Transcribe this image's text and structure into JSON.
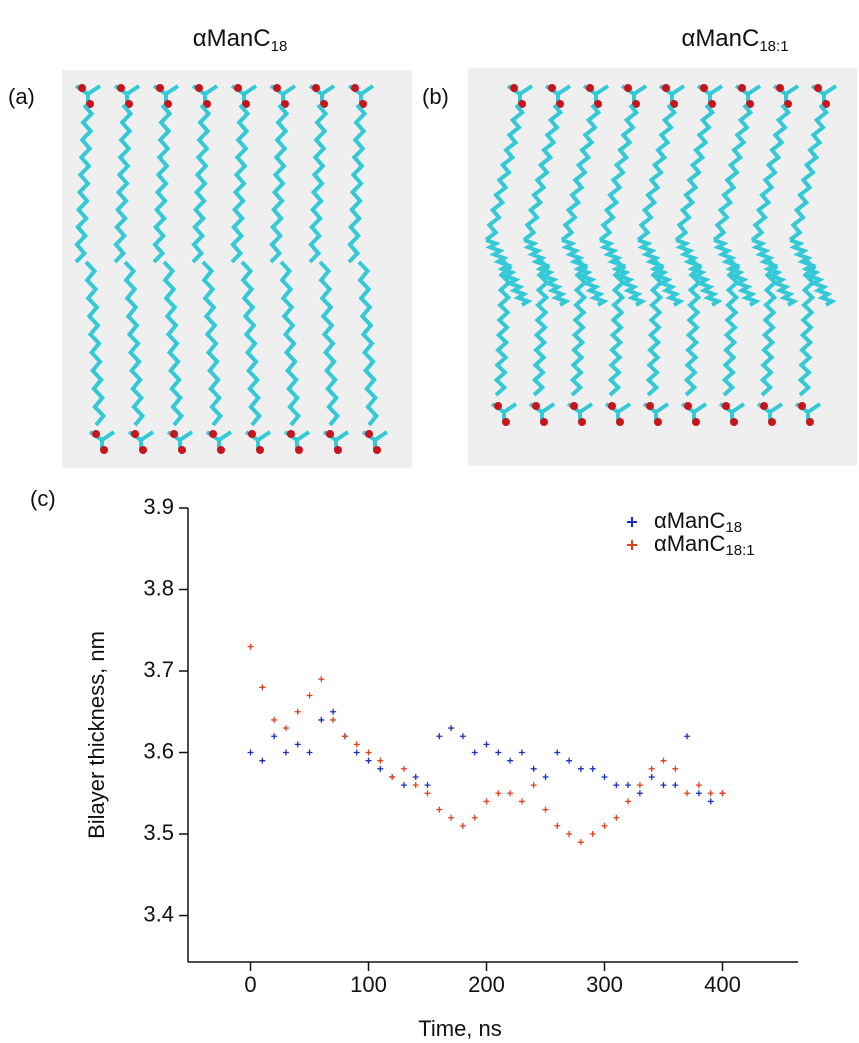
{
  "panels": [
    {
      "label": "(a)",
      "title": "αManC",
      "title_sub": "18"
    },
    {
      "label": "(b)",
      "title": "αManC",
      "title_sub": "18:1"
    }
  ],
  "chart_data": {
    "type": "scatter",
    "label": "(c)",
    "x_label": "Time, ns",
    "y_label": "Bilayer thickness, nm",
    "xlim": [
      -53,
      464
    ],
    "ylim": [
      3.343,
      3.9
    ],
    "xticks": [
      0,
      100,
      200,
      300,
      400
    ],
    "yticks": [
      3.4,
      3.5,
      3.6,
      3.7,
      3.8,
      3.9
    ],
    "legend": "upper right",
    "marker": "+",
    "series": [
      {
        "name": "αManC",
        "name_sub": "18",
        "color": "#1c2fc4",
        "x": [
          0,
          10,
          20,
          30,
          40,
          50,
          60,
          70,
          80,
          90,
          100,
          110,
          120,
          130,
          140,
          150,
          160,
          170,
          180,
          190,
          200,
          210,
          220,
          230,
          240,
          250,
          260,
          270,
          280,
          290,
          300,
          310,
          320,
          330,
          340,
          350,
          360,
          370,
          380,
          390,
          400
        ],
        "values": [
          3.6,
          3.59,
          3.62,
          3.6,
          3.61,
          3.6,
          3.64,
          3.65,
          3.62,
          3.6,
          3.59,
          3.58,
          3.57,
          3.56,
          3.57,
          3.56,
          3.62,
          3.63,
          3.62,
          3.6,
          3.61,
          3.6,
          3.59,
          3.6,
          3.58,
          3.57,
          3.6,
          3.59,
          3.58,
          3.58,
          3.57,
          3.56,
          3.56,
          3.55,
          3.57,
          3.56,
          3.56,
          3.62,
          3.55,
          3.54,
          3.55
        ]
      },
      {
        "name": "αManC",
        "name_sub": "18:1",
        "color": "#e0401c",
        "x": [
          0,
          10,
          20,
          30,
          40,
          50,
          60,
          70,
          80,
          90,
          100,
          110,
          120,
          130,
          140,
          150,
          160,
          170,
          180,
          190,
          200,
          210,
          220,
          230,
          240,
          250,
          260,
          270,
          280,
          290,
          300,
          310,
          320,
          330,
          340,
          350,
          360,
          370,
          380,
          390,
          400
        ],
        "values": [
          3.73,
          3.68,
          3.64,
          3.63,
          3.65,
          3.67,
          3.69,
          3.64,
          3.62,
          3.61,
          3.6,
          3.59,
          3.57,
          3.58,
          3.56,
          3.55,
          3.53,
          3.52,
          3.51,
          3.52,
          3.54,
          3.55,
          3.55,
          3.54,
          3.56,
          3.53,
          3.51,
          3.5,
          3.49,
          3.5,
          3.51,
          3.52,
          3.54,
          3.56,
          3.58,
          3.59,
          3.58,
          3.55,
          3.56,
          3.55,
          3.55
        ]
      }
    ]
  }
}
